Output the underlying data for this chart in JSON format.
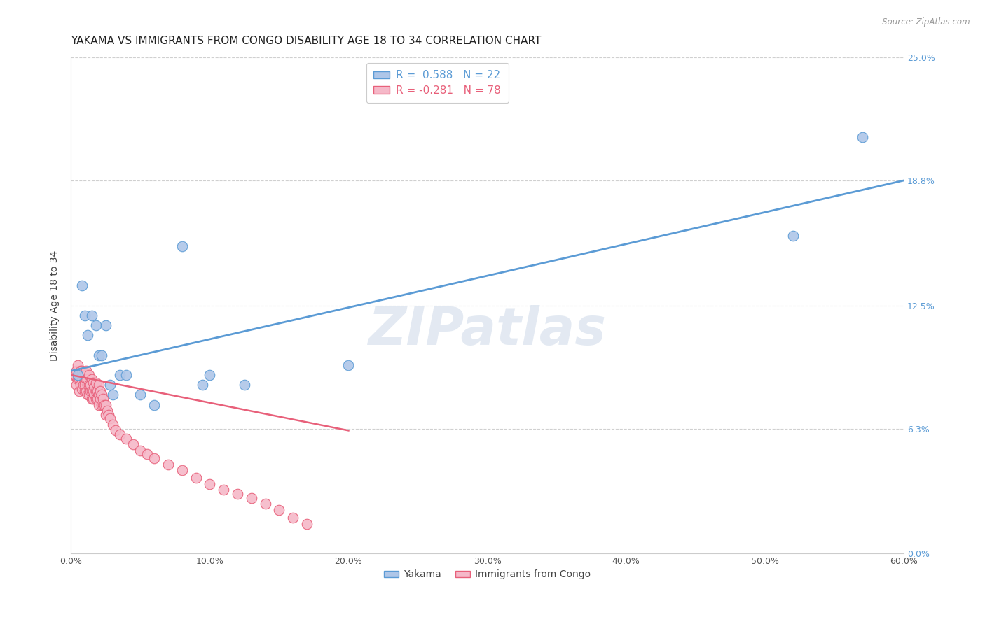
{
  "title": "YAKAMA VS IMMIGRANTS FROM CONGO DISABILITY AGE 18 TO 34 CORRELATION CHART",
  "source": "Source: ZipAtlas.com",
  "ylabel": "Disability Age 18 to 34",
  "xlabel_ticks": [
    "0.0%",
    "10.0%",
    "20.0%",
    "30.0%",
    "40.0%",
    "50.0%",
    "60.0%"
  ],
  "xlabel_vals": [
    0.0,
    0.1,
    0.2,
    0.3,
    0.4,
    0.5,
    0.6
  ],
  "ylabel_ticks": [
    "0.0%",
    "6.3%",
    "12.5%",
    "18.8%",
    "25.0%"
  ],
  "ylabel_vals": [
    0.0,
    0.063,
    0.125,
    0.188,
    0.25
  ],
  "xlim": [
    0.0,
    0.6
  ],
  "ylim": [
    0.0,
    0.25
  ],
  "yakama_color": "#aec6e8",
  "congo_color": "#f5b8c8",
  "yakama_line_color": "#5b9bd5",
  "congo_line_color": "#e8607a",
  "legend_label1_short": "Yakama",
  "legend_label2_short": "Immigrants from Congo",
  "R_yakama": 0.588,
  "N_yakama": 22,
  "R_congo": -0.281,
  "N_congo": 78,
  "watermark": "ZIPatlas",
  "yakama_x": [
    0.005,
    0.008,
    0.01,
    0.012,
    0.015,
    0.018,
    0.02,
    0.022,
    0.025,
    0.028,
    0.03,
    0.035,
    0.04,
    0.05,
    0.06,
    0.08,
    0.095,
    0.1,
    0.125,
    0.2,
    0.52,
    0.57
  ],
  "yakama_y": [
    0.09,
    0.135,
    0.12,
    0.11,
    0.12,
    0.115,
    0.1,
    0.1,
    0.115,
    0.085,
    0.08,
    0.09,
    0.09,
    0.08,
    0.075,
    0.155,
    0.085,
    0.09,
    0.085,
    0.095,
    0.16,
    0.21
  ],
  "congo_x": [
    0.002,
    0.003,
    0.004,
    0.004,
    0.005,
    0.005,
    0.006,
    0.006,
    0.006,
    0.007,
    0.007,
    0.008,
    0.008,
    0.008,
    0.009,
    0.009,
    0.01,
    0.01,
    0.01,
    0.01,
    0.011,
    0.011,
    0.011,
    0.012,
    0.012,
    0.012,
    0.013,
    0.013,
    0.013,
    0.014,
    0.014,
    0.015,
    0.015,
    0.015,
    0.016,
    0.016,
    0.016,
    0.017,
    0.017,
    0.018,
    0.018,
    0.018,
    0.019,
    0.019,
    0.02,
    0.02,
    0.02,
    0.021,
    0.021,
    0.022,
    0.022,
    0.023,
    0.023,
    0.024,
    0.025,
    0.025,
    0.026,
    0.027,
    0.028,
    0.03,
    0.032,
    0.035,
    0.04,
    0.045,
    0.05,
    0.055,
    0.06,
    0.07,
    0.08,
    0.09,
    0.1,
    0.11,
    0.12,
    0.13,
    0.14,
    0.15,
    0.16,
    0.17
  ],
  "congo_y": [
    0.09,
    0.09,
    0.085,
    0.092,
    0.088,
    0.095,
    0.082,
    0.09,
    0.088,
    0.085,
    0.092,
    0.083,
    0.088,
    0.092,
    0.085,
    0.09,
    0.082,
    0.087,
    0.09,
    0.085,
    0.082,
    0.088,
    0.092,
    0.08,
    0.085,
    0.088,
    0.08,
    0.085,
    0.09,
    0.082,
    0.085,
    0.078,
    0.082,
    0.088,
    0.078,
    0.082,
    0.086,
    0.08,
    0.084,
    0.078,
    0.082,
    0.086,
    0.078,
    0.082,
    0.075,
    0.08,
    0.085,
    0.078,
    0.082,
    0.075,
    0.08,
    0.075,
    0.078,
    0.075,
    0.07,
    0.075,
    0.072,
    0.07,
    0.068,
    0.065,
    0.062,
    0.06,
    0.058,
    0.055,
    0.052,
    0.05,
    0.048,
    0.045,
    0.042,
    0.038,
    0.035,
    0.032,
    0.03,
    0.028,
    0.025,
    0.022,
    0.018,
    0.015
  ],
  "background_color": "#ffffff",
  "grid_color": "#d0d0d0",
  "title_fontsize": 11,
  "axis_label_fontsize": 10,
  "tick_fontsize": 9,
  "yakama_trend_x": [
    0.0,
    0.6
  ],
  "yakama_trend_y": [
    0.092,
    0.188
  ],
  "congo_trend_x": [
    0.0,
    0.2
  ],
  "congo_trend_y": [
    0.09,
    0.062
  ]
}
